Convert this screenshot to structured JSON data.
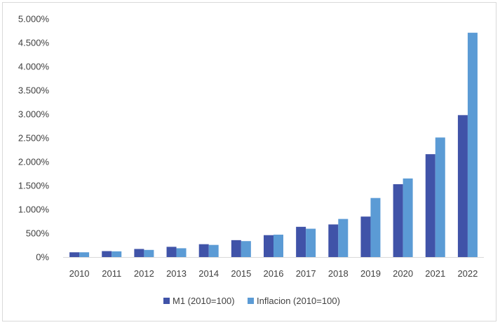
{
  "chart_data": {
    "type": "bar",
    "title": "",
    "xlabel": "",
    "ylabel": "",
    "categories": [
      "2010",
      "2011",
      "2012",
      "2013",
      "2014",
      "2015",
      "2016",
      "2017",
      "2018",
      "2019",
      "2020",
      "2021",
      "2022"
    ],
    "series": [
      {
        "name": "M1 (2010=100)",
        "color": "#4053a8",
        "values": [
          100,
          125,
          170,
          215,
          270,
          355,
          460,
          635,
          685,
          850,
          1530,
          2160,
          2980
        ]
      },
      {
        "name": "Inflacion (2010=100)",
        "color": "#5b9bd5",
        "values": [
          100,
          120,
          150,
          185,
          255,
          335,
          470,
          595,
          800,
          1240,
          1650,
          2510,
          4710
        ]
      }
    ],
    "ylim": [
      0,
      5000
    ],
    "y_ticks": [
      0,
      500,
      1000,
      1500,
      2000,
      2500,
      3000,
      3500,
      4000,
      4500,
      5000
    ],
    "y_tick_labels": [
      "0%",
      "500%",
      "1.000%",
      "1.500%",
      "2.000%",
      "2.500%",
      "3.000%",
      "3.500%",
      "4.000%",
      "4.500%",
      "5.000%"
    ],
    "grid": false,
    "legend_position": "bottom"
  }
}
